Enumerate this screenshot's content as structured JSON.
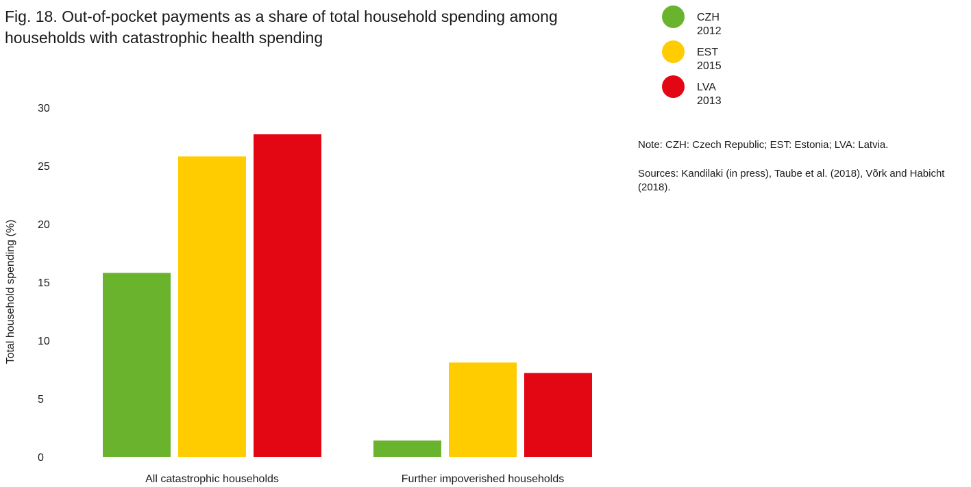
{
  "chart_data": {
    "type": "bar",
    "title": "Fig. 18. Out-of-pocket payments as a share of total household spending among households with catastrophic health spending",
    "title_lines": [
      "Fig. 18. Out-of-pocket payments as a share of total household spending among",
      "households with catastrophic health spending"
    ],
    "xlabel": "",
    "ylabel": "Total household spending (%)",
    "ylim": [
      0,
      30
    ],
    "yticks": [
      0,
      5,
      10,
      15,
      20,
      25,
      30
    ],
    "categories": [
      "All catastrophic households",
      "Further impoverished households"
    ],
    "series": [
      {
        "name": "CZH 2012",
        "color": "#6ab42d",
        "values": [
          15.8,
          1.4
        ]
      },
      {
        "name": "EST 2015",
        "color": "#ffcc00",
        "values": [
          25.8,
          8.1
        ]
      },
      {
        "name": "LVA 2013",
        "color": "#e30613",
        "values": [
          27.7,
          7.2
        ]
      }
    ],
    "grid": false,
    "legend_position": "top-right"
  },
  "notes": {
    "note": "Note: CZH: Czech Republic; EST: Estonia; LVA: Latvia.",
    "sources": "Sources: Kandilaki (in press), Taube et al. (2018), Võrk and Habicht (2018)."
  }
}
